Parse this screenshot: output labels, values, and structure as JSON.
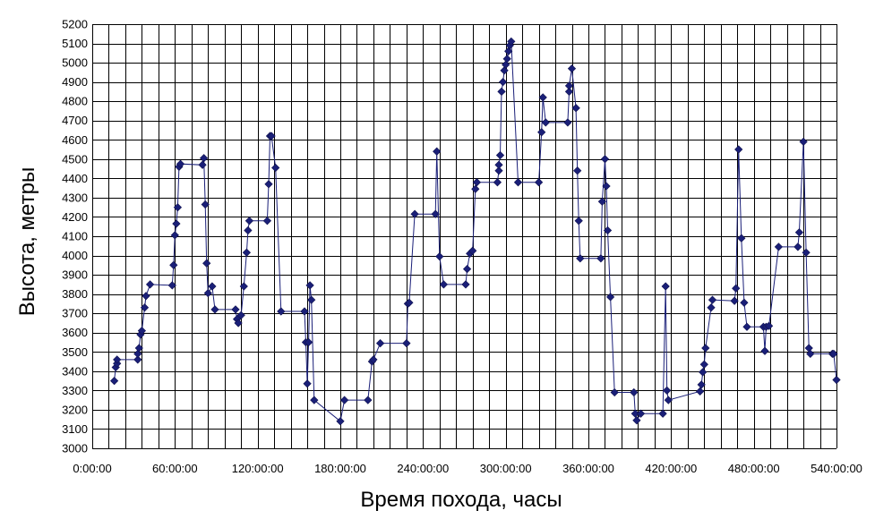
{
  "chart_data": {
    "type": "line",
    "title": "",
    "xlabel": "Время похода, часы",
    "ylabel": "Высота, метры",
    "xlim": [
      0,
      540
    ],
    "ylim": [
      3000,
      5200
    ],
    "x_ticks": [
      0,
      60,
      120,
      180,
      240,
      300,
      360,
      420,
      480,
      540
    ],
    "x_tick_labels": [
      "0:00:00",
      "60:00:00",
      "120:00:00",
      "180:00:00",
      "240:00:00",
      "300:00:00",
      "360:00:00",
      "420:00:00",
      "480:00:00",
      "540:00:00"
    ],
    "y_ticks": [
      3000,
      3100,
      3200,
      3300,
      3400,
      3500,
      3600,
      3700,
      3800,
      3900,
      4000,
      4100,
      4200,
      4300,
      4400,
      4500,
      4600,
      4700,
      4800,
      4900,
      5000,
      5100,
      5200
    ],
    "y_tick_labels": [
      "3000",
      "3100",
      "3200",
      "3300",
      "3400",
      "3500",
      "3600",
      "3700",
      "3800",
      "3900",
      "4000",
      "4100",
      "4200",
      "4300",
      "4400",
      "4500",
      "4600",
      "4700",
      "4800",
      "4900",
      "5000",
      "5100",
      "5200"
    ],
    "grid": {
      "horizontal": true,
      "vertical_every_hours": 12
    },
    "legend": "none",
    "marker": "diamond",
    "color": "#1a1f78",
    "points": [
      [
        16,
        3350
      ],
      [
        17,
        3420
      ],
      [
        18,
        3440
      ],
      [
        18,
        3460
      ],
      [
        33,
        3460
      ],
      [
        33,
        3490
      ],
      [
        34,
        3520
      ],
      [
        35,
        3590
      ],
      [
        36,
        3610
      ],
      [
        38,
        3730
      ],
      [
        39,
        3790
      ],
      [
        42,
        3850
      ],
      [
        58,
        3845
      ],
      [
        59,
        3950
      ],
      [
        60,
        4105
      ],
      [
        61,
        4165
      ],
      [
        62,
        4250
      ],
      [
        63,
        4460
      ],
      [
        64,
        4475
      ],
      [
        80,
        4470
      ],
      [
        81,
        4505
      ],
      [
        82,
        4265
      ],
      [
        83,
        3960
      ],
      [
        84,
        3805
      ],
      [
        87,
        3840
      ],
      [
        89,
        3720
      ],
      [
        104,
        3720
      ],
      [
        105,
        3670
      ],
      [
        106,
        3650
      ],
      [
        108,
        3690
      ],
      [
        110,
        3840
      ],
      [
        112,
        4015
      ],
      [
        113,
        4130
      ],
      [
        114,
        4180
      ],
      [
        127,
        4180
      ],
      [
        128,
        4370
      ],
      [
        129,
        4620
      ],
      [
        130,
        4620
      ],
      [
        133,
        4455
      ],
      [
        137,
        3710
      ],
      [
        154,
        3710
      ],
      [
        155,
        3550
      ],
      [
        156,
        3335
      ],
      [
        157,
        3550
      ],
      [
        158,
        3845
      ],
      [
        159,
        3770
      ],
      [
        161,
        3250
      ],
      [
        180,
        3140
      ],
      [
        183,
        3250
      ],
      [
        200,
        3250
      ],
      [
        203,
        3450
      ],
      [
        204,
        3460
      ],
      [
        209,
        3545
      ],
      [
        228,
        3545
      ],
      [
        229,
        3750
      ],
      [
        230,
        3755
      ],
      [
        234,
        4215
      ],
      [
        249,
        4215
      ],
      [
        250,
        4540
      ],
      [
        252,
        3995
      ],
      [
        255,
        3850
      ],
      [
        271,
        3850
      ],
      [
        272,
        3930
      ],
      [
        274,
        4010
      ],
      [
        276,
        4025
      ],
      [
        278,
        4345
      ],
      [
        279,
        4380
      ],
      [
        294,
        4380
      ],
      [
        295,
        4440
      ],
      [
        295,
        4470
      ],
      [
        296,
        4520
      ],
      [
        297,
        4850
      ],
      [
        298,
        4900
      ],
      [
        299,
        4960
      ],
      [
        300,
        4990
      ],
      [
        301,
        5020
      ],
      [
        302,
        5060
      ],
      [
        303,
        5090
      ],
      [
        304,
        5110
      ],
      [
        309,
        4380
      ],
      [
        324,
        4380
      ],
      [
        326,
        4640
      ],
      [
        327,
        4820
      ],
      [
        329,
        4690
      ],
      [
        345,
        4690
      ],
      [
        346,
        4850
      ],
      [
        346,
        4880
      ],
      [
        348,
        4970
      ],
      [
        351,
        4765
      ],
      [
        352,
        4440
      ],
      [
        353,
        4180
      ],
      [
        354,
        3985
      ],
      [
        369,
        3985
      ],
      [
        370,
        4280
      ],
      [
        372,
        4500
      ],
      [
        373,
        4360
      ],
      [
        374,
        4130
      ],
      [
        376,
        3785
      ],
      [
        379,
        3290
      ],
      [
        393,
        3290
      ],
      [
        394,
        3180
      ],
      [
        395,
        3145
      ],
      [
        398,
        3180
      ],
      [
        414,
        3180
      ],
      [
        416,
        3840
      ],
      [
        417,
        3300
      ],
      [
        418,
        3250
      ],
      [
        441,
        3295
      ],
      [
        442,
        3330
      ],
      [
        443,
        3395
      ],
      [
        444,
        3435
      ],
      [
        445,
        3520
      ],
      [
        449,
        3730
      ],
      [
        450,
        3770
      ],
      [
        466,
        3765
      ],
      [
        467,
        3830
      ],
      [
        469,
        4550
      ],
      [
        471,
        4090
      ],
      [
        473,
        3755
      ],
      [
        475,
        3630
      ],
      [
        487,
        3630
      ],
      [
        488,
        3505
      ],
      [
        489,
        3630
      ],
      [
        491,
        3635
      ],
      [
        498,
        4045
      ],
      [
        512,
        4045
      ],
      [
        513,
        4120
      ],
      [
        516,
        4590
      ],
      [
        518,
        4015
      ],
      [
        520,
        3520
      ],
      [
        521,
        3490
      ],
      [
        537,
        3490
      ],
      [
        538,
        3490
      ],
      [
        540,
        3355
      ]
    ]
  }
}
